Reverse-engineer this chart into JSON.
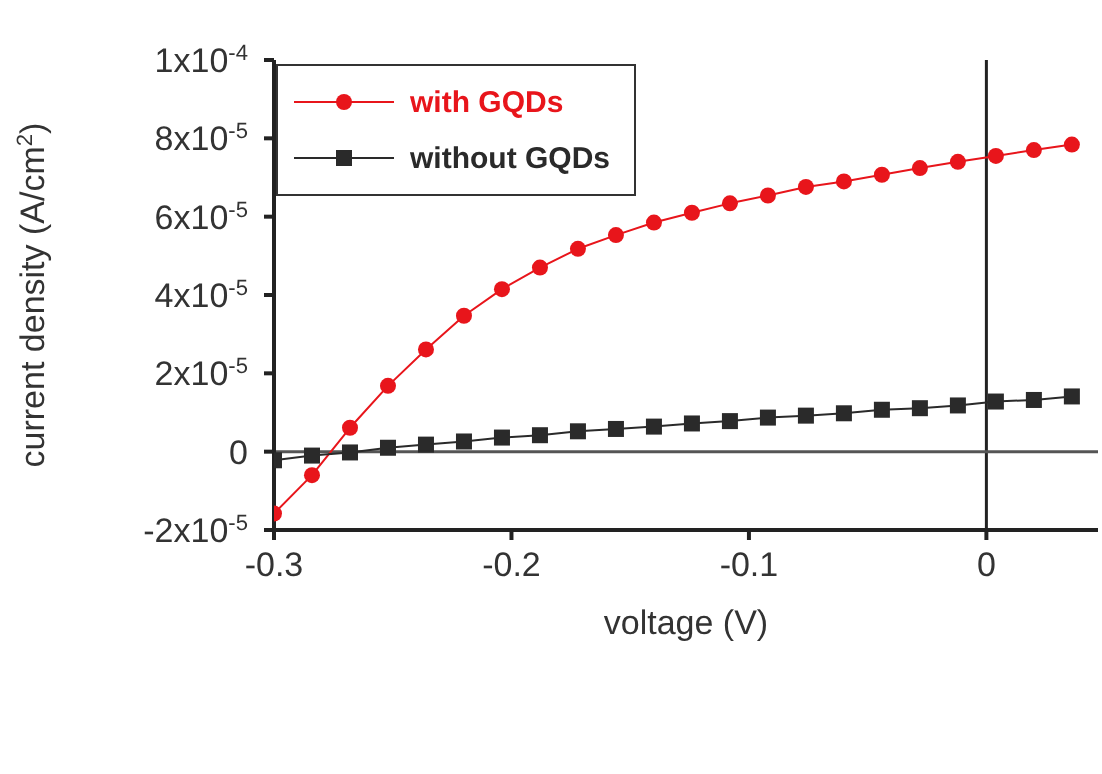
{
  "chart_data": {
    "type": "line",
    "xlabel": "voltage (V)",
    "ylabel": "current density (A/cm$^{2}$)",
    "x": [
      -0.3,
      -0.284,
      -0.268,
      -0.252,
      -0.236,
      -0.22,
      -0.204,
      -0.188,
      -0.172,
      -0.156,
      -0.14,
      -0.124,
      -0.108,
      -0.092,
      -0.076,
      -0.06,
      -0.044,
      -0.028,
      -0.012,
      0.004,
      0.02,
      0.036
    ],
    "series": [
      {
        "name": "with GQDs",
        "color": "#e8151b",
        "marker": "circle",
        "values": [
          -1.58e-05,
          -6e-06,
          6.1e-06,
          1.68e-05,
          2.61e-05,
          3.47e-05,
          4.15e-05,
          4.7e-05,
          5.18e-05,
          5.53e-05,
          5.85e-05,
          6.1e-05,
          6.34e-05,
          6.54e-05,
          6.76e-05,
          6.9e-05,
          7.07e-05,
          7.24e-05,
          7.4e-05,
          7.55e-05,
          7.7e-05,
          7.84e-05
        ]
      },
      {
        "name": "without GQDs",
        "color": "#2a2a2a",
        "marker": "square",
        "values": [
          -2.2e-06,
          -1e-06,
          -2e-07,
          1e-06,
          1.8e-06,
          2.6e-06,
          3.6e-06,
          4.2e-06,
          5.2e-06,
          5.8e-06,
          6.4e-06,
          7.2e-06,
          7.8e-06,
          8.7e-06,
          9.2e-06,
          9.8e-06,
          1.07e-05,
          1.11e-05,
          1.18e-05,
          1.28e-05,
          1.32e-05,
          1.41e-05
        ]
      }
    ],
    "xlim": [
      -0.3,
      0.047
    ],
    "xticks": [
      -0.3,
      -0.2,
      -0.1,
      0
    ],
    "ylim": [
      -2e-05,
      0.0001
    ],
    "yticks": [
      {
        "value": -2e-05,
        "label": "-2x10$^{-5}$"
      },
      {
        "value": 0,
        "label": "0"
      },
      {
        "value": 2e-05,
        "label": "2x10$^{-5}$"
      },
      {
        "value": 4e-05,
        "label": "4x10$^{-5}$"
      },
      {
        "value": 6e-05,
        "label": "6x10$^{-5}$"
      },
      {
        "value": 8e-05,
        "label": "8x10$^{-5}$"
      },
      {
        "value": 0.0001,
        "label": "1x10$^{-4}$"
      }
    ],
    "ref_lines": [
      {
        "axis": "x",
        "value": 0,
        "color": "#222222"
      },
      {
        "axis": "y",
        "value": 0,
        "color": "#555555"
      }
    ],
    "grid": false,
    "legend": "top left"
  }
}
